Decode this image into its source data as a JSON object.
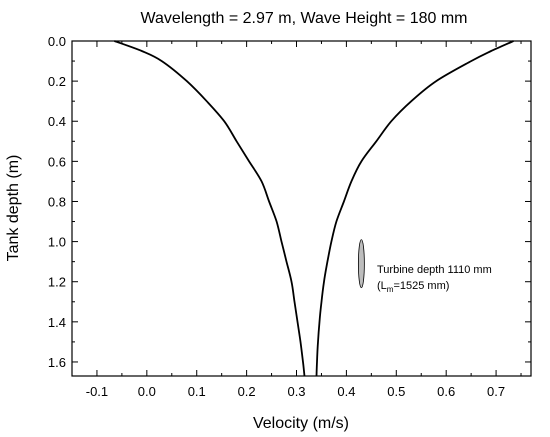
{
  "chart_data": {
    "type": "line",
    "title": "Wavelength = 2.97 m, Wave Height = 180 mm",
    "xlabel": "Velocity (m/s)",
    "ylabel": "Tank depth (m)",
    "xlim": [
      -0.15,
      0.77
    ],
    "ylim": [
      0.0,
      1.67
    ],
    "y_inverted": true,
    "grid": false,
    "x_ticks": [
      -0.1,
      0.0,
      0.1,
      0.2,
      0.3,
      0.4,
      0.5,
      0.6,
      0.7
    ],
    "x_tick_labels": [
      "-0.1",
      "0.0",
      "0.1",
      "0.2",
      "0.3",
      "0.4",
      "0.5",
      "0.6",
      "0.7"
    ],
    "y_ticks": [
      0.0,
      0.2,
      0.4,
      0.6,
      0.8,
      1.0,
      1.2,
      1.4,
      1.6
    ],
    "y_tick_labels": [
      "0.0",
      "0.2",
      "0.4",
      "0.6",
      "0.8",
      "1.0",
      "1.2",
      "1.4",
      "1.6"
    ],
    "series": [
      {
        "color": "#000000",
        "points": [
          [
            -0.065,
            0.0
          ],
          [
            -0.01,
            0.05
          ],
          [
            0.03,
            0.1
          ],
          [
            0.08,
            0.2
          ],
          [
            0.12,
            0.3
          ],
          [
            0.155,
            0.4
          ],
          [
            0.18,
            0.5
          ],
          [
            0.205,
            0.6
          ],
          [
            0.23,
            0.7
          ],
          [
            0.245,
            0.8
          ],
          [
            0.26,
            0.9
          ],
          [
            0.27,
            1.0
          ],
          [
            0.28,
            1.1
          ],
          [
            0.29,
            1.2
          ],
          [
            0.296,
            1.3
          ],
          [
            0.302,
            1.4
          ],
          [
            0.308,
            1.5
          ],
          [
            0.313,
            1.6
          ],
          [
            0.316,
            1.67
          ]
        ]
      },
      {
        "color": "#000000",
        "points": [
          [
            0.735,
            0.0
          ],
          [
            0.69,
            0.05
          ],
          [
            0.65,
            0.1
          ],
          [
            0.58,
            0.2
          ],
          [
            0.53,
            0.3
          ],
          [
            0.49,
            0.4
          ],
          [
            0.46,
            0.5
          ],
          [
            0.43,
            0.6
          ],
          [
            0.41,
            0.7
          ],
          [
            0.395,
            0.8
          ],
          [
            0.38,
            0.9
          ],
          [
            0.37,
            1.0
          ],
          [
            0.362,
            1.1
          ],
          [
            0.355,
            1.2
          ],
          [
            0.35,
            1.3
          ],
          [
            0.346,
            1.4
          ],
          [
            0.343,
            1.5
          ],
          [
            0.341,
            1.6
          ],
          [
            0.34,
            1.67
          ]
        ]
      }
    ],
    "annotation": {
      "line1": "Turbine depth 1110 mm",
      "line2_prefix": "(L",
      "line2_sub": "m",
      "line2_suffix": "=1525 mm)",
      "marker": {
        "x": 0.43,
        "y": 1.11,
        "rx_data": 0.006,
        "ry_data": 0.12,
        "fill": "#bdbdbd"
      }
    }
  }
}
